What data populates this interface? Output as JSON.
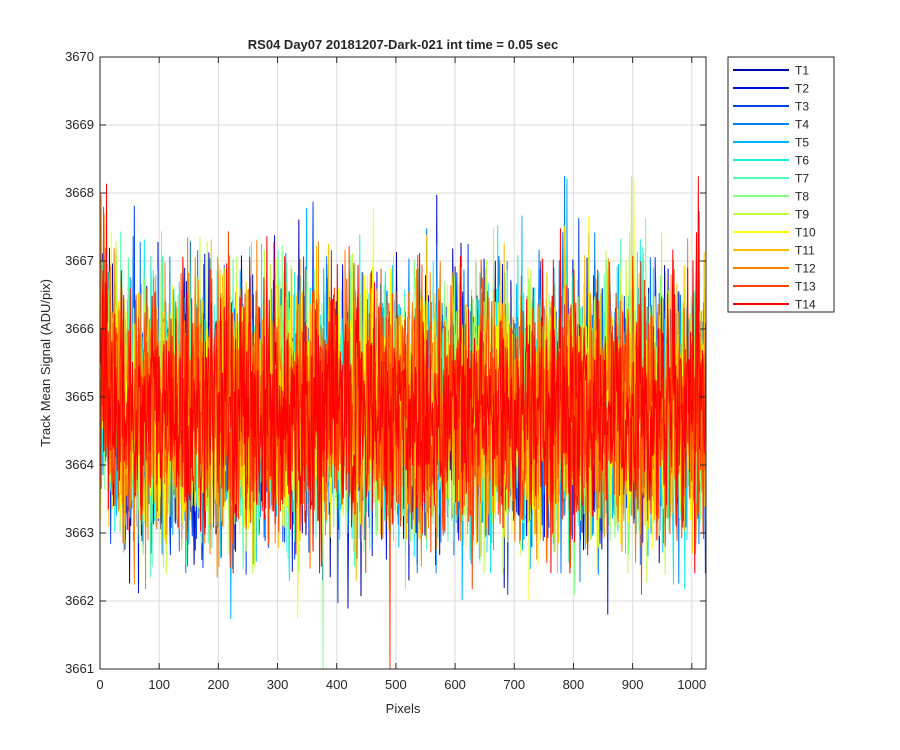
{
  "chart_data": {
    "type": "line",
    "title": "RS04 Day07 20181207-Dark-021 int time = 0.05 sec",
    "xlabel": "Pixels",
    "ylabel": "Track Mean Signal (ADU/pix)",
    "xlim": [
      0,
      1024
    ],
    "ylim": [
      3661,
      3670
    ],
    "x_ticks": [
      0,
      100,
      200,
      300,
      400,
      500,
      600,
      700,
      800,
      900,
      1000
    ],
    "x_tick_labels": [
      "0",
      "100",
      "200",
      "300",
      "400",
      "500",
      "600",
      "700",
      "800",
      "900",
      "1000"
    ],
    "y_ticks": [
      3661,
      3662,
      3663,
      3664,
      3665,
      3666,
      3667,
      3668,
      3669,
      3670
    ],
    "y_tick_labels": [
      "3661",
      "3662",
      "3663",
      "3664",
      "3665",
      "3666",
      "3667",
      "3668",
      "3669",
      "3670"
    ],
    "grid": true,
    "legend_position": "outside-top-right",
    "noise_model": {
      "x_start": 1,
      "x_end": 1024,
      "mean_signal": 3664.8,
      "std_signal": 0.9
    },
    "series": [
      {
        "name": "T1",
        "color": "#0000aa"
      },
      {
        "name": "T2",
        "color": "#0010dd"
      },
      {
        "name": "T3",
        "color": "#0040f0"
      },
      {
        "name": "T4",
        "color": "#0080f8"
      },
      {
        "name": "T5",
        "color": "#00b8ff"
      },
      {
        "name": "T6",
        "color": "#10f0f0"
      },
      {
        "name": "T7",
        "color": "#50ffb0"
      },
      {
        "name": "T8",
        "color": "#80ff80"
      },
      {
        "name": "T9",
        "color": "#c0ff40"
      },
      {
        "name": "T10",
        "color": "#ffff00"
      },
      {
        "name": "T11",
        "color": "#ffc000"
      },
      {
        "name": "T12",
        "color": "#ff8000"
      },
      {
        "name": "T13",
        "color": "#ff4000"
      },
      {
        "name": "T14",
        "color": "#ff0000"
      }
    ]
  }
}
